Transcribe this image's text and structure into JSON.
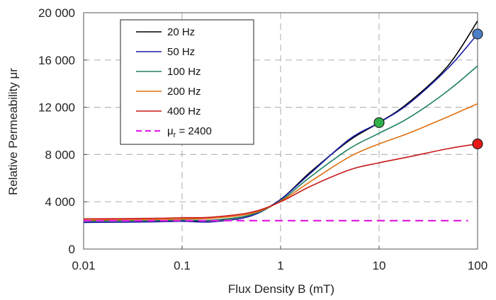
{
  "chart_data": {
    "type": "line",
    "xlabel": "Flux Density B (mT)",
    "ylabel": "Relative Permeability μr",
    "x_scale": "log",
    "xlim": [
      0.01,
      100
    ],
    "ylim": [
      0,
      20000
    ],
    "x_ticks": [
      0.01,
      0.1,
      1,
      10,
      100
    ],
    "x_tick_labels": [
      "0.01",
      "0.1",
      "1",
      "10",
      "100"
    ],
    "y_ticks": [
      0,
      4000,
      8000,
      12000,
      16000,
      20000
    ],
    "y_tick_labels": [
      "0",
      "4 000",
      "8 000",
      "12 000",
      "16 000",
      "20 000"
    ],
    "grid": true,
    "legend_position": "top-left",
    "series": [
      {
        "name": "20 Hz",
        "color": "#000000",
        "dash": false,
        "x": [
          0.01,
          0.05,
          0.1,
          0.2,
          0.5,
          1,
          2,
          5,
          10,
          20,
          50,
          100
        ],
        "y": [
          2400,
          2380,
          2400,
          2420,
          2900,
          4200,
          6500,
          9200,
          10700,
          12400,
          15500,
          19300
        ]
      },
      {
        "name": "50 Hz",
        "color": "#1a1aa6",
        "dash": false,
        "x": [
          0.01,
          0.05,
          0.1,
          0.2,
          0.5,
          1,
          2,
          5,
          10,
          20,
          50,
          100
        ],
        "y": [
          2250,
          2300,
          2350,
          2300,
          2800,
          4200,
          6400,
          9300,
          10700,
          12300,
          15300,
          18200
        ]
      },
      {
        "name": "100 Hz",
        "color": "#1e8060",
        "dash": false,
        "x": [
          0.01,
          0.05,
          0.1,
          0.2,
          0.5,
          1,
          2,
          5,
          10,
          20,
          50,
          100
        ],
        "y": [
          2350,
          2400,
          2450,
          2450,
          2900,
          4100,
          6100,
          8500,
          9800,
          11100,
          13400,
          15500
        ]
      },
      {
        "name": "200 Hz",
        "color": "#e07010",
        "dash": false,
        "x": [
          0.01,
          0.05,
          0.1,
          0.2,
          0.5,
          1,
          2,
          5,
          10,
          20,
          50,
          100
        ],
        "y": [
          2450,
          2500,
          2550,
          2600,
          3000,
          4050,
          5700,
          7800,
          8900,
          9800,
          11200,
          12300
        ]
      },
      {
        "name": "400 Hz",
        "color": "#c81818",
        "dash": false,
        "x": [
          0.01,
          0.05,
          0.1,
          0.2,
          0.5,
          1,
          2,
          5,
          10,
          20,
          50,
          100
        ],
        "y": [
          2550,
          2600,
          2650,
          2700,
          3100,
          4000,
          5300,
          6700,
          7300,
          7800,
          8500,
          8900
        ]
      },
      {
        "name": "μr = 2400",
        "legend_symbol": "μ",
        "legend_sub": "r",
        "legend_rest": " = 2400",
        "color": "#e020e0",
        "dash": true,
        "x": [
          0.01,
          80
        ],
        "y": [
          2400,
          2400
        ]
      }
    ],
    "markers": [
      {
        "x": 10,
        "y": 10700,
        "color": "#2fb24a"
      },
      {
        "x": 100,
        "y": 18200,
        "color": "#4a7fc8"
      },
      {
        "x": 100,
        "y": 8900,
        "color": "#e81818"
      }
    ]
  }
}
